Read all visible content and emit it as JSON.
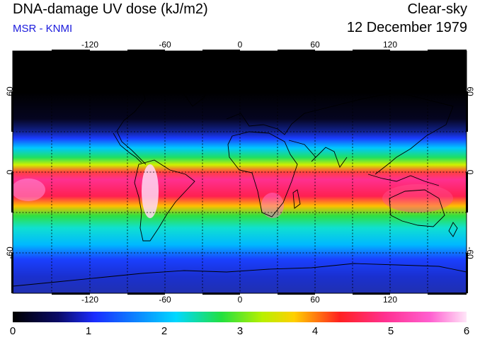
{
  "header": {
    "title": "DNA-damage UV dose (kJ/m2)",
    "source": "MSR - KNMI",
    "condition": "Clear-sky",
    "date": "12 December 1979"
  },
  "map": {
    "projection": "equirectangular",
    "lon_range": [
      -180,
      180
    ],
    "lat_range": [
      -90,
      90
    ],
    "lon_ticks": [
      "-120",
      "-60",
      "0",
      "60",
      "120"
    ],
    "lat_ticks_left": [
      "60",
      "0",
      "-60"
    ],
    "lat_ticks_right": [
      "60",
      "0",
      "-60"
    ],
    "gridlines": "dotted, every 30 degrees"
  },
  "colorbar": {
    "labels": [
      "0",
      "1",
      "2",
      "3",
      "4",
      "5",
      "6"
    ],
    "min": 0,
    "max": 6,
    "stops": [
      "#000000",
      "#0a0a66",
      "#1a2cff",
      "#00d8ff",
      "#22e040",
      "#b8f000",
      "#ffd000",
      "#ff2020",
      "#ff3090",
      "#ff60d0",
      "#ffe6f8"
    ]
  },
  "colors": {
    "title": "#000000",
    "source": "#1a1adc"
  }
}
